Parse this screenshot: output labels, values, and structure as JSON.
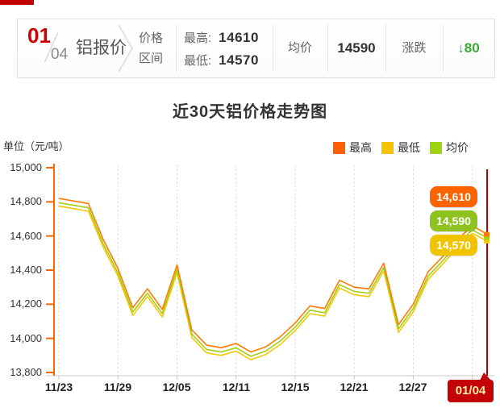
{
  "page": {
    "accent_red": "#c40008",
    "down_green": "#3aa935"
  },
  "header": {
    "date_month": "01",
    "date_day": "04",
    "product": "铝报价",
    "range_label": [
      "价格",
      "区间"
    ],
    "high_label": "最高:",
    "high_value": "14610",
    "low_label": "最低:",
    "low_value": "14570",
    "avg_label": "均价",
    "avg_value": "14590",
    "change_label": "涨跌",
    "change_arrow": "↓",
    "change_value": "80"
  },
  "chart": {
    "title": "近30天铝价格走势图",
    "unit_label": "单位（元/吨）",
    "legend": [
      {
        "label": "最高",
        "color": "#ff5f00"
      },
      {
        "label": "最低",
        "color": "#f5c400"
      },
      {
        "label": "均价",
        "color": "#9ed312"
      }
    ],
    "y_ticks": [
      "15,000",
      "14,800",
      "14,600",
      "14,400",
      "14,200",
      "14,000",
      "13,800"
    ],
    "x_ticks": [
      "11/23",
      "11/29",
      "12/05",
      "12/11",
      "12/15",
      "12/21",
      "12/27"
    ],
    "current_label": "01/04",
    "end_badges": [
      {
        "label": "14,610",
        "color": "#f96300"
      },
      {
        "label": "14,590",
        "color": "#8ec31f"
      },
      {
        "label": "14,570",
        "color": "#f2c400"
      }
    ]
  },
  "chart_data": {
    "type": "line",
    "title": "近30天铝价格走势图",
    "ylabel": "单位（元/吨）",
    "ylim": [
      13800,
      15000
    ],
    "y_tick_step": 200,
    "x_tick_labels": [
      "11/23",
      "11/29",
      "12/05",
      "12/11",
      "12/15",
      "12/21",
      "12/27",
      "01/04"
    ],
    "x_tick_indices": [
      0,
      4,
      8,
      12,
      16,
      20,
      24,
      28
    ],
    "grid": "vertical-dotted",
    "legend_position": "top-right",
    "series": [
      {
        "name": "最高",
        "color": "#ff7b00",
        "values": [
          14820,
          14805,
          14790,
          14580,
          14410,
          14180,
          14290,
          14170,
          14430,
          14050,
          13960,
          13945,
          13970,
          13920,
          13950,
          14010,
          14090,
          14190,
          14175,
          14340,
          14300,
          14290,
          14440,
          14080,
          14200,
          14390,
          14480,
          14580,
          14660,
          14610
        ]
      },
      {
        "name": "均价",
        "color": "#a4cf15",
        "values": [
          14795,
          14780,
          14765,
          14555,
          14385,
          14155,
          14265,
          14145,
          14405,
          14025,
          13935,
          13920,
          13945,
          13895,
          13925,
          13985,
          14065,
          14165,
          14150,
          14315,
          14275,
          14265,
          14415,
          14055,
          14175,
          14365,
          14455,
          14555,
          14635,
          14590
        ]
      },
      {
        "name": "最低",
        "color": "#f5c90a",
        "values": [
          14775,
          14760,
          14745,
          14535,
          14365,
          14135,
          14245,
          14125,
          14385,
          14005,
          13915,
          13900,
          13925,
          13875,
          13905,
          13965,
          14045,
          14145,
          14130,
          14295,
          14255,
          14245,
          14395,
          14035,
          14155,
          14345,
          14435,
          14535,
          14615,
          14570
        ]
      }
    ],
    "end_labels": [
      "14,610",
      "14,590",
      "14,570"
    ],
    "current_marker": {
      "label": "01/04",
      "x_position": "last-point",
      "color": "#b40000"
    }
  }
}
